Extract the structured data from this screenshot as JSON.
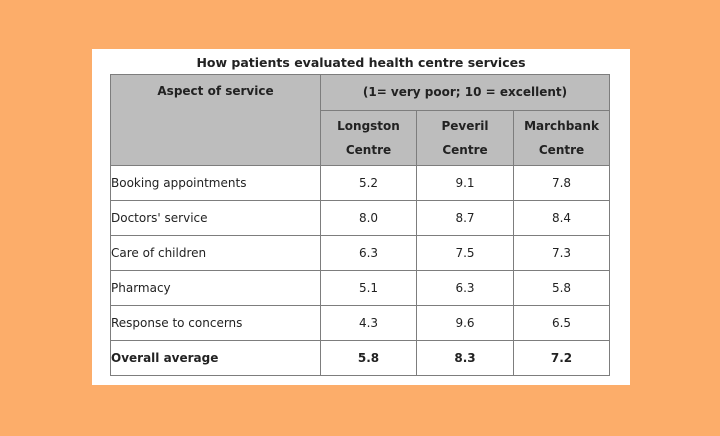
{
  "chart_data": {
    "type": "table",
    "title": "How patients evaluated health centre services",
    "row_header": "Aspect of service",
    "scale_label": "(1= very poor; 10 = excellent)",
    "columns": [
      {
        "line1": "Longston",
        "line2": "Centre"
      },
      {
        "line1": "Peveril",
        "line2": "Centre"
      },
      {
        "line1": "Marchbank",
        "line2": "Centre"
      }
    ],
    "rows": [
      {
        "label": "Booking appointments",
        "values": [
          "5.2",
          "9.1",
          "7.8"
        ]
      },
      {
        "label": "Doctors' service",
        "values": [
          "8.0",
          "8.7",
          "8.4"
        ]
      },
      {
        "label": "Care of children",
        "values": [
          "6.3",
          "7.5",
          "7.3"
        ]
      },
      {
        "label": "Pharmacy",
        "values": [
          "5.1",
          "6.3",
          "5.8"
        ]
      },
      {
        "label": "Response to concerns",
        "values": [
          "4.3",
          "9.6",
          "6.5"
        ]
      }
    ],
    "average_row": {
      "label": "Overall average",
      "values": [
        "5.8",
        "8.3",
        "7.2"
      ]
    }
  },
  "colors": {
    "background": "#fcad6a",
    "header_fill": "#bdbdbd",
    "card": "#ffffff"
  }
}
